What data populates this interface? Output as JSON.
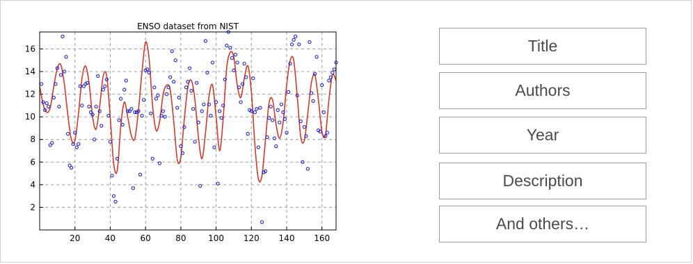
{
  "colors": {
    "curve": "#cc3a2a",
    "points": "#2222cc",
    "grid": "#9a9a9a",
    "box_border": "#9a9a9a"
  },
  "chart_data": {
    "type": "scatter",
    "title": "ENSO dataset from NIST",
    "xlabel": "",
    "ylabel": "",
    "xlim": [
      0,
      168
    ],
    "ylim": [
      0,
      17.5
    ],
    "x_ticks": [
      20,
      40,
      60,
      80,
      100,
      120,
      140,
      160
    ],
    "y_ticks": [
      2,
      4,
      6,
      8,
      10,
      12,
      14,
      16
    ],
    "grid": true,
    "series": [
      {
        "kind": "points",
        "x": [
          1,
          2,
          3,
          4,
          5,
          6,
          7,
          8,
          9,
          10,
          11,
          12,
          13,
          14,
          15,
          16,
          17,
          18,
          19,
          20,
          21,
          22,
          23,
          24,
          25,
          26,
          27,
          28,
          29,
          30,
          31,
          32,
          33,
          34,
          35,
          36,
          37,
          38,
          39,
          40,
          41,
          42,
          43,
          44,
          45,
          46,
          47,
          48,
          49,
          50,
          51,
          52,
          53,
          54,
          55,
          56,
          57,
          58,
          59,
          60,
          61,
          62,
          63,
          64,
          65,
          66,
          67,
          68,
          69,
          70,
          71,
          72,
          73,
          74,
          75,
          76,
          77,
          78,
          79,
          80,
          81,
          82,
          83,
          84,
          85,
          86,
          87,
          88,
          89,
          90,
          91,
          92,
          93,
          94,
          95,
          96,
          97,
          98,
          99,
          100,
          101,
          102,
          103,
          104,
          105,
          106,
          107,
          108,
          109,
          110,
          111,
          112,
          113,
          114,
          115,
          116,
          117,
          118,
          119,
          120,
          121,
          122,
          123,
          124,
          125,
          126,
          127,
          128,
          129,
          130,
          131,
          132,
          133,
          134,
          135,
          136,
          137,
          138,
          139,
          140,
          141,
          142,
          143,
          144,
          145,
          146,
          147,
          148,
          149,
          150,
          151,
          152,
          153,
          154,
          155,
          156,
          157,
          158,
          159,
          160,
          161,
          162,
          163,
          164,
          165,
          166,
          167,
          168
        ],
        "y": [
          12.9,
          11.3,
          10.6,
          11.2,
          10.9,
          7.5,
          7.7,
          11.7,
          12.9,
          14.3,
          10.9,
          13.7,
          17.1,
          14.0,
          15.3,
          8.5,
          5.7,
          5.5,
          7.6,
          8.6,
          7.3,
          7.6,
          12.7,
          11.0,
          12.7,
          12.9,
          13.0,
          10.9,
          10.4,
          10.2,
          8.0,
          10.9,
          13.6,
          10.5,
          9.2,
          12.4,
          12.7,
          13.3,
          10.1,
          7.8,
          4.8,
          3.0,
          2.5,
          6.3,
          9.7,
          11.6,
          9.3,
          12.4,
          13.2,
          10.5,
          10.5,
          10.7,
          3.7,
          10.4,
          10.4,
          10.5,
          4.9,
          10.1,
          11.5,
          14.1,
          14.2,
          13.9,
          10.3,
          6.3,
          12.6,
          11.6,
          11.9,
          5.9,
          10.1,
          10.5,
          10.0,
          12.0,
          12.6,
          13.5,
          15.8,
          13.1,
          15.0,
          10.8,
          11.7,
          7.4,
          6.8,
          9.1,
          12.6,
          13.1,
          14.3,
          12.3,
          10.7,
          7.8,
          13.0,
          9.5,
          3.9,
          10.5,
          11.1,
          16.7,
          13.9,
          11.1,
          10.1,
          14.8,
          7.3,
          11.3,
          4.1,
          10.5,
          9.9,
          11.0,
          13.3,
          16.3,
          17.5,
          16.1,
          15.2,
          14.1,
          15.5,
          14.8,
          12.6,
          11.3,
          12.9,
          14.7,
          13.5,
          8.5,
          10.6,
          10.5,
          13.4,
          10.4,
          10.7,
          7.3,
          10.8,
          0.7,
          5.1,
          5.2,
          8.2,
          9.9,
          10.9,
          9.7,
          8.1,
          7.4,
          10.6,
          9.5,
          11.1,
          10.4,
          9.8,
          8.6,
          12.2,
          14.7,
          16.4,
          16.8,
          17.1,
          11.9,
          16.4,
          9.6,
          6.0,
          9.1,
          8.3,
          5.4,
          16.6,
          12.1,
          11.4,
          13.8,
          15.3,
          8.8,
          8.7,
          12.8,
          10.4,
          8.3,
          8.6,
          13.2,
          13.5,
          13.9,
          14.2,
          14.8
        ]
      },
      {
        "kind": "fitted-curve",
        "x": [
          0,
          2,
          4,
          6,
          8,
          10,
          12,
          14,
          16,
          18,
          20,
          22,
          24,
          26,
          28,
          30,
          32,
          34,
          36,
          38,
          40,
          42,
          44,
          46,
          48,
          50,
          52,
          54,
          56,
          58,
          60,
          62,
          64,
          66,
          68,
          70,
          72,
          74,
          76,
          78,
          80,
          82,
          84,
          86,
          88,
          90,
          92,
          94,
          96,
          98,
          100,
          102,
          104,
          106,
          108,
          110,
          112,
          114,
          116,
          118,
          120,
          122,
          124,
          126,
          128,
          130,
          132,
          134,
          136,
          138,
          140,
          142,
          144,
          146,
          148,
          150,
          152,
          154,
          156,
          158,
          160,
          162,
          164,
          166,
          168
        ],
        "y": [
          12.7,
          11.1,
          10.4,
          10.8,
          12.7,
          14.3,
          14.6,
          12.9,
          10.1,
          8.0,
          7.9,
          10.3,
          13.4,
          14.5,
          13.0,
          10.0,
          8.9,
          10.9,
          13.6,
          13.6,
          10.0,
          5.8,
          5.3,
          9.2,
          11.3,
          9.9,
          8.3,
          8.1,
          10.6,
          14.0,
          16.6,
          15.2,
          11.0,
          8.8,
          9.6,
          12.0,
          12.8,
          12.4,
          9.6,
          6.2,
          6.4,
          9.8,
          12.6,
          13.2,
          11.5,
          8.2,
          6.3,
          8.6,
          11.8,
          12.8,
          10.0,
          7.0,
          9.8,
          14.3,
          15.7,
          15.3,
          12.8,
          11.7,
          13.4,
          14.5,
          12.2,
          7.5,
          4.5,
          4.8,
          8.0,
          11.2,
          11.5,
          9.3,
          8.1,
          9.5,
          12.8,
          15.0,
          15.0,
          11.8,
          8.2,
          7.9,
          10.3,
          13.0,
          13.7,
          11.5,
          8.7,
          8.4,
          11.6,
          13.7,
          13.2
        ]
      }
    ]
  },
  "metadata_fields": [
    {
      "label": "Title"
    },
    {
      "label": "Authors"
    },
    {
      "label": "Year"
    },
    {
      "label": "Description"
    },
    {
      "label": "And others…"
    }
  ]
}
